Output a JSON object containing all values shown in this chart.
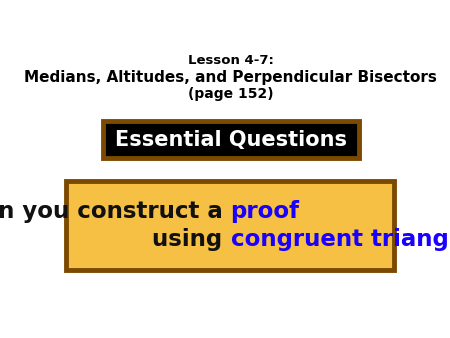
{
  "background_color": "#ffffff",
  "lesson_line": "Lesson 4-7:",
  "title_line": "Medians, Altitudes, and Perpendicular Bisectors",
  "page_line": "(page 152)",
  "eq_label": "Essential Questions",
  "eq_bg": "#000000",
  "eq_border": "#7B4A00",
  "eq_text_color": "#ffffff",
  "question_proof": "proof",
  "question_congruent": "congruent triangles",
  "question_blue": "#1a00ff",
  "question_black": "#111111",
  "question_bg": "#f5c044",
  "question_border": "#7B4A00",
  "figsize": [
    4.5,
    3.38
  ],
  "dpi": 100
}
